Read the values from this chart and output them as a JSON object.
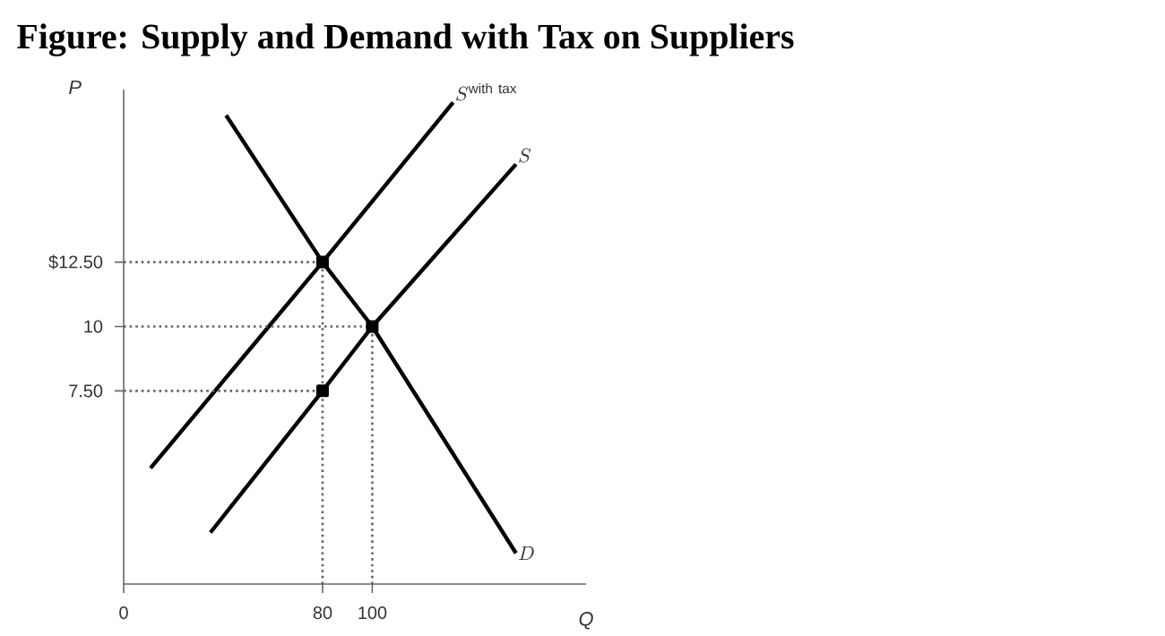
{
  "chart_data": {
    "type": "line",
    "title": "Figure: Supply and Demand with Tax on Suppliers",
    "xlabel": "Q",
    "ylabel": "P",
    "xlim": [
      0,
      186
    ],
    "ylim": [
      0,
      19.2
    ],
    "xticks": [
      0,
      80,
      100
    ],
    "yticks": [
      {
        "value": 7.5,
        "label": "7.50"
      },
      10,
      {
        "value": 12.5,
        "label": "$12.50"
      }
    ],
    "grid": false,
    "legend": false,
    "series": [
      {
        "name": "S^{\\mathrm{with\\ tax}}",
        "color": "#000000",
        "x": [
          10.8,
          80,
          132.5
        ],
        "values": [
          4.5,
          12.5,
          18.7
        ]
      },
      {
        "name": "S",
        "color": "#000000",
        "x": [
          34.9,
          80,
          100,
          157.8
        ],
        "values": [
          2.0,
          7.5,
          10,
          16.3
        ]
      },
      {
        "name": "D",
        "color": "#000000",
        "x": [
          41.2,
          80,
          100,
          157.8
        ],
        "values": [
          18.2,
          12.5,
          10,
          1.2
        ]
      },
      {
        "type": "line",
        "line_style": "dotted",
        "color": "#666666",
        "x": [
          0,
          80
        ],
        "values": [
          12.5,
          12.5
        ]
      },
      {
        "type": "line",
        "line_style": "dotted",
        "color": "#666666",
        "x": [
          0,
          100
        ],
        "values": [
          10,
          10
        ]
      },
      {
        "type": "line",
        "line_style": "dotted",
        "color": "#666666",
        "x": [
          0,
          80
        ],
        "values": [
          7.5,
          7.5
        ]
      },
      {
        "type": "line",
        "line_style": "dotted",
        "color": "#666666",
        "x": [
          80,
          80
        ],
        "values": [
          0,
          12.5
        ]
      },
      {
        "type": "line",
        "line_style": "dotted",
        "color": "#666666",
        "x": [
          100,
          100
        ],
        "values": [
          0,
          10
        ]
      },
      {
        "type": "scatter",
        "marker": "square",
        "color": "#000000",
        "x": [
          80,
          100,
          80
        ],
        "values": [
          12.5,
          10,
          7.5
        ]
      }
    ]
  }
}
